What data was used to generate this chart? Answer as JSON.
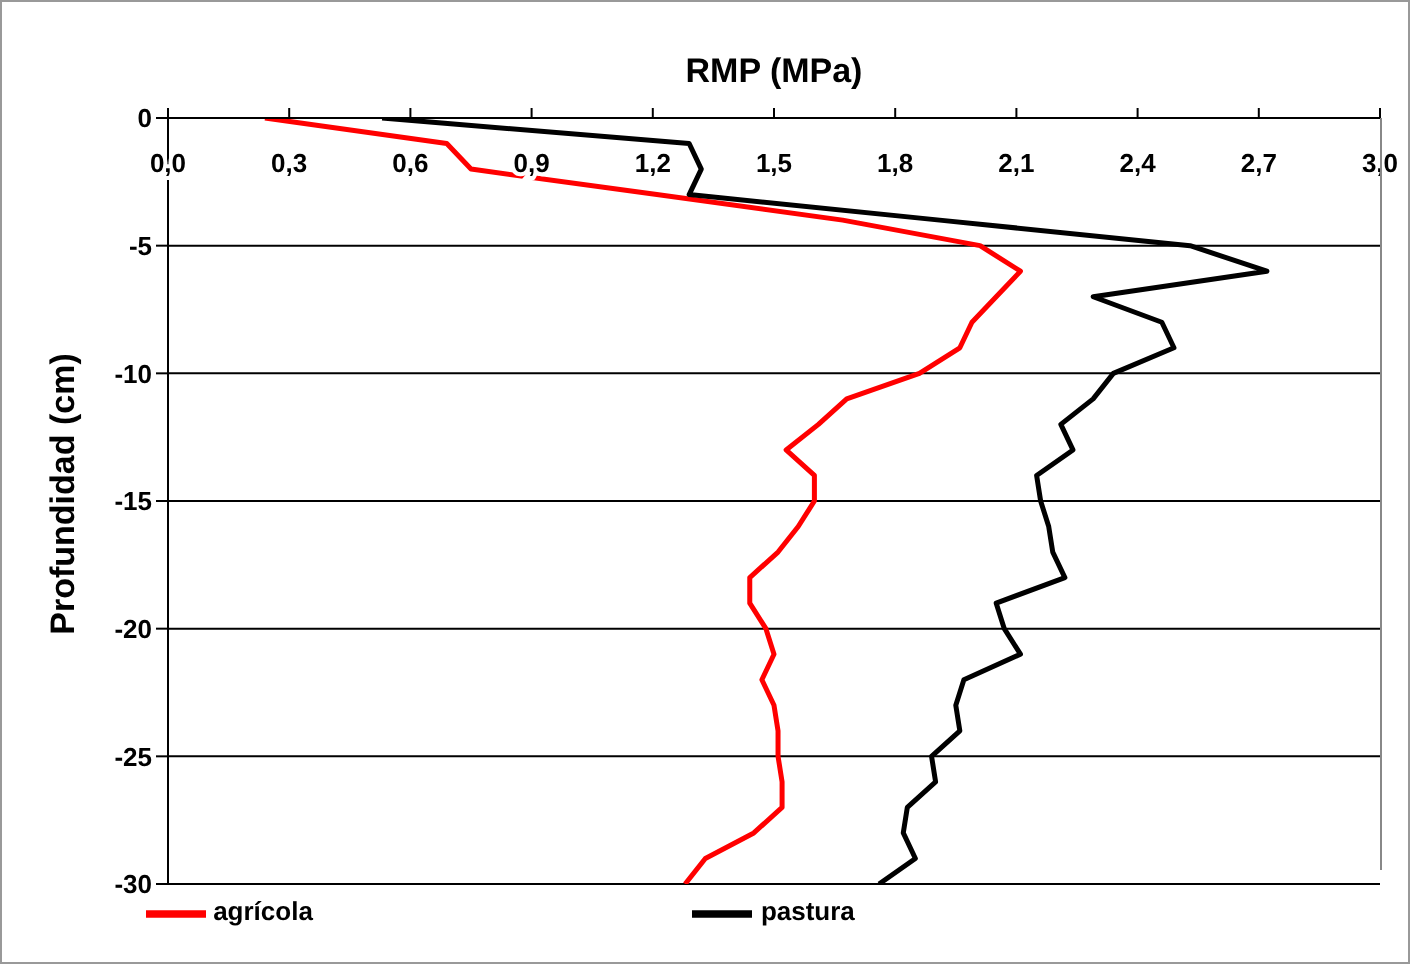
{
  "chart_data": {
    "type": "line",
    "title": "RMP (MPa)",
    "ylabel": "Profundidad (cm)",
    "xlim": [
      0,
      3
    ],
    "xticks": [
      {
        "value": 0,
        "label": "0,0"
      },
      {
        "value": 0.3,
        "label": "0,3"
      },
      {
        "value": 0.6,
        "label": "0,6"
      },
      {
        "value": 0.9,
        "label": "0,9"
      },
      {
        "value": 1.2,
        "label": "1,2"
      },
      {
        "value": 1.5,
        "label": "1,5"
      },
      {
        "value": 1.8,
        "label": "1,8"
      },
      {
        "value": 2.1,
        "label": "2,1"
      },
      {
        "value": 2.4,
        "label": "2,4"
      },
      {
        "value": 2.7,
        "label": "2,7"
      },
      {
        "value": 3,
        "label": "3,0"
      }
    ],
    "ylim": [
      -30,
      0
    ],
    "yticks": [
      0,
      -5,
      -10,
      -15,
      -20,
      -25,
      -30
    ],
    "grid": "y",
    "legend": "bottom",
    "marker": "none",
    "line_style": "solid",
    "series": [
      {
        "name": "agrícola",
        "color": "#ff0000",
        "x": [
          0.24,
          0.69,
          0.75,
          1.21,
          1.67,
          2.01,
          2.11,
          2.05,
          1.99,
          1.96,
          1.86,
          1.68,
          1.61,
          1.53,
          1.6,
          1.6,
          1.56,
          1.51,
          1.44,
          1.44,
          1.48,
          1.5,
          1.47,
          1.5,
          1.51,
          1.51,
          1.52,
          1.52,
          1.45,
          1.33,
          1.28
        ],
        "values": [
          0,
          -1,
          -2,
          -3,
          -4,
          -5,
          -6,
          -7,
          -8,
          -9,
          -10,
          -11,
          -12,
          -13,
          -14,
          -15,
          -16,
          -17,
          -18,
          -19,
          -20,
          -21,
          -22,
          -23,
          -24,
          -25,
          -26,
          -27,
          -28,
          -29,
          -30
        ]
      },
      {
        "name": "pastura",
        "color": "#000000",
        "x": [
          0.53,
          1.29,
          1.32,
          1.29,
          1.91,
          2.53,
          2.72,
          2.29,
          2.46,
          2.49,
          2.34,
          2.29,
          2.21,
          2.24,
          2.15,
          2.16,
          2.18,
          2.19,
          2.22,
          2.05,
          2.07,
          2.11,
          1.97,
          1.95,
          1.96,
          1.89,
          1.9,
          1.83,
          1.82,
          1.85,
          1.76
        ],
        "values": [
          0,
          -1,
          -2,
          -3,
          -4,
          -5,
          -6,
          -7,
          -8,
          -9,
          -10,
          -11,
          -12,
          -13,
          -14,
          -15,
          -16,
          -17,
          -18,
          -19,
          -20,
          -21,
          -22,
          -23,
          -24,
          -25,
          -26,
          -27,
          -28,
          -29,
          -30
        ]
      }
    ]
  }
}
